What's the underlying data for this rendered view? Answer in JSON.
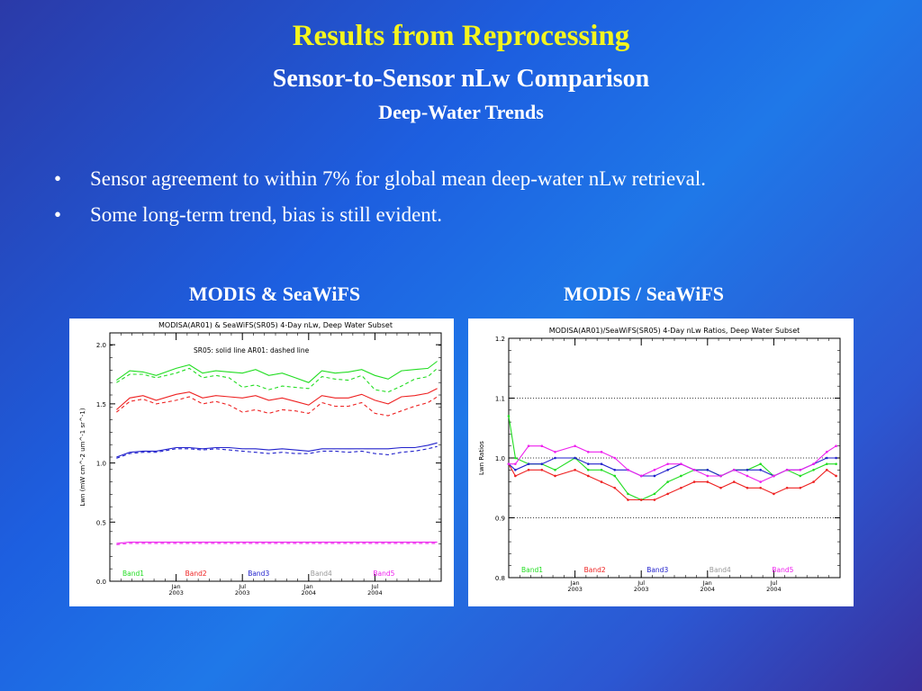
{
  "slide": {
    "title": "Results from Reprocessing",
    "subtitle": "Sensor-to-Sensor nLw Comparison",
    "subsubtitle": "Deep-Water Trends",
    "bullet_char": "•",
    "bullets": [
      "Sensor agreement to within 7% for global mean deep-water nLw retrieval.",
      "Some long-term trend, bias is still evident."
    ],
    "left_caption": "MODIS & SeaWiFS",
    "right_caption": "MODIS / SeaWiFS"
  },
  "colors": {
    "Band1": "#22dd22",
    "Band2": "#ee2222",
    "Band3": "#2222cc",
    "Band4": "#999999",
    "Band5": "#ee22ee"
  },
  "chart_data": [
    {
      "type": "line",
      "title": "MODISA(AR01) & SeaWiFS(SR05) 4-Day nLw, Deep Water Subset",
      "note": "SR05: solid line   AR01: dashed line",
      "ylabel": "Lwn (mW cm^-2 um^-1 sr^-1)",
      "ylim": [
        0.0,
        2.1
      ],
      "yticks": [
        "0.0",
        "0.5",
        "1.0",
        "1.5",
        "2.0"
      ],
      "ytick_values": [
        0.0,
        0.5,
        1.0,
        1.5,
        2.0
      ],
      "xlim": [
        2002.5,
        2005.0
      ],
      "xticks": [
        {
          "x": 2003.0,
          "top": "Jan",
          "bottom": "2003"
        },
        {
          "x": 2003.5,
          "top": "Jul",
          "bottom": "2003"
        },
        {
          "x": 2004.0,
          "top": "Jan",
          "bottom": "2004"
        },
        {
          "x": 2004.5,
          "top": "Jul",
          "bottom": "2004"
        }
      ],
      "x": [
        2002.55,
        2002.65,
        2002.75,
        2002.85,
        2003.0,
        2003.1,
        2003.2,
        2003.3,
        2003.4,
        2003.5,
        2003.6,
        2003.7,
        2003.8,
        2003.9,
        2004.0,
        2004.1,
        2004.2,
        2004.3,
        2004.4,
        2004.5,
        2004.6,
        2004.7,
        2004.8,
        2004.9,
        2004.97
      ],
      "series": [
        {
          "name": "Band1",
          "style": "solid",
          "values": [
            1.7,
            1.78,
            1.77,
            1.74,
            1.8,
            1.83,
            1.76,
            1.78,
            1.77,
            1.76,
            1.79,
            1.74,
            1.76,
            1.72,
            1.68,
            1.78,
            1.76,
            1.77,
            1.79,
            1.74,
            1.71,
            1.78,
            1.79,
            1.8,
            1.86
          ]
        },
        {
          "name": "Band1",
          "style": "dashed",
          "values": [
            1.68,
            1.75,
            1.75,
            1.72,
            1.76,
            1.8,
            1.72,
            1.74,
            1.72,
            1.64,
            1.66,
            1.62,
            1.65,
            1.64,
            1.63,
            1.73,
            1.71,
            1.7,
            1.74,
            1.62,
            1.6,
            1.65,
            1.71,
            1.73,
            1.8
          ]
        },
        {
          "name": "Band2",
          "style": "solid",
          "values": [
            1.45,
            1.55,
            1.57,
            1.53,
            1.58,
            1.6,
            1.55,
            1.57,
            1.56,
            1.55,
            1.57,
            1.53,
            1.55,
            1.52,
            1.49,
            1.57,
            1.55,
            1.55,
            1.58,
            1.53,
            1.5,
            1.56,
            1.57,
            1.59,
            1.63
          ]
        },
        {
          "name": "Band2",
          "style": "dashed",
          "values": [
            1.43,
            1.52,
            1.54,
            1.5,
            1.53,
            1.56,
            1.5,
            1.52,
            1.49,
            1.43,
            1.45,
            1.42,
            1.45,
            1.44,
            1.42,
            1.51,
            1.48,
            1.48,
            1.51,
            1.42,
            1.4,
            1.44,
            1.48,
            1.51,
            1.56
          ]
        },
        {
          "name": "Band3",
          "style": "solid",
          "values": [
            1.05,
            1.09,
            1.1,
            1.1,
            1.13,
            1.13,
            1.12,
            1.13,
            1.13,
            1.12,
            1.12,
            1.11,
            1.12,
            1.11,
            1.1,
            1.12,
            1.12,
            1.12,
            1.12,
            1.12,
            1.12,
            1.13,
            1.13,
            1.15,
            1.17
          ]
        },
        {
          "name": "Band3",
          "style": "dashed",
          "values": [
            1.04,
            1.08,
            1.09,
            1.09,
            1.12,
            1.12,
            1.11,
            1.12,
            1.11,
            1.1,
            1.09,
            1.08,
            1.09,
            1.08,
            1.08,
            1.1,
            1.1,
            1.09,
            1.1,
            1.08,
            1.07,
            1.09,
            1.1,
            1.12,
            1.14
          ]
        },
        {
          "name": "Band5",
          "style": "solid",
          "values": [
            0.32,
            0.33,
            0.33,
            0.33,
            0.33,
            0.33,
            0.33,
            0.33,
            0.33,
            0.33,
            0.33,
            0.33,
            0.33,
            0.33,
            0.33,
            0.33,
            0.33,
            0.33,
            0.33,
            0.33,
            0.33,
            0.33,
            0.33,
            0.33,
            0.33
          ]
        },
        {
          "name": "Band5",
          "style": "dashed",
          "values": [
            0.31,
            0.32,
            0.32,
            0.32,
            0.32,
            0.32,
            0.32,
            0.32,
            0.32,
            0.32,
            0.32,
            0.32,
            0.32,
            0.32,
            0.32,
            0.32,
            0.32,
            0.32,
            0.32,
            0.32,
            0.32,
            0.32,
            0.32,
            0.32,
            0.32
          ]
        }
      ],
      "legend": [
        "Band1",
        "Band2",
        "Band3",
        "Band4",
        "Band5"
      ]
    },
    {
      "type": "line",
      "title": "MODISA(AR01)/SeaWiFS(SR05) 4-Day nLw Ratios, Deep Water Subset",
      "ylabel": "Lwn Ratios",
      "ylim": [
        0.8,
        1.2
      ],
      "yticks": [
        "0.8",
        "0.9",
        "1.0",
        "1.1",
        "1.2"
      ],
      "ytick_values": [
        0.8,
        0.9,
        1.0,
        1.1,
        1.2
      ],
      "gridlines": [
        0.9,
        1.0,
        1.1
      ],
      "xlim": [
        2002.5,
        2005.0
      ],
      "xticks": [
        {
          "x": 2003.0,
          "top": "Jan",
          "bottom": "2003"
        },
        {
          "x": 2003.5,
          "top": "Jul",
          "bottom": "2003"
        },
        {
          "x": 2004.0,
          "top": "Jan",
          "bottom": "2004"
        },
        {
          "x": 2004.5,
          "top": "Jul",
          "bottom": "2004"
        }
      ],
      "x": [
        2002.5,
        2002.55,
        2002.65,
        2002.75,
        2002.85,
        2003.0,
        2003.1,
        2003.2,
        2003.3,
        2003.4,
        2003.5,
        2003.6,
        2003.7,
        2003.8,
        2003.9,
        2004.0,
        2004.1,
        2004.2,
        2004.3,
        2004.4,
        2004.5,
        2004.6,
        2004.7,
        2004.8,
        2004.9,
        2004.97
      ],
      "series": [
        {
          "name": "Band1",
          "values": [
            1.07,
            1.0,
            0.99,
            0.99,
            0.98,
            1.0,
            0.98,
            0.98,
            0.97,
            0.94,
            0.93,
            0.94,
            0.96,
            0.97,
            0.98,
            0.98,
            0.97,
            0.98,
            0.98,
            0.99,
            0.97,
            0.98,
            0.97,
            0.98,
            0.99,
            0.99
          ]
        },
        {
          "name": "Band2",
          "values": [
            0.99,
            0.97,
            0.98,
            0.98,
            0.97,
            0.98,
            0.97,
            0.96,
            0.95,
            0.93,
            0.93,
            0.93,
            0.94,
            0.95,
            0.96,
            0.96,
            0.95,
            0.96,
            0.95,
            0.95,
            0.94,
            0.95,
            0.95,
            0.96,
            0.98,
            0.97
          ]
        },
        {
          "name": "Band3",
          "values": [
            0.99,
            0.98,
            0.99,
            0.99,
            1.0,
            1.0,
            0.99,
            0.99,
            0.98,
            0.98,
            0.97,
            0.97,
            0.98,
            0.99,
            0.98,
            0.98,
            0.97,
            0.98,
            0.98,
            0.98,
            0.97,
            0.98,
            0.98,
            0.99,
            1.0,
            1.0
          ]
        },
        {
          "name": "Band5",
          "values": [
            0.99,
            0.99,
            1.02,
            1.02,
            1.01,
            1.02,
            1.01,
            1.01,
            1.0,
            0.98,
            0.97,
            0.98,
            0.99,
            0.99,
            0.98,
            0.97,
            0.97,
            0.98,
            0.97,
            0.96,
            0.97,
            0.98,
            0.98,
            0.99,
            1.01,
            1.02
          ]
        }
      ],
      "legend": [
        "Band1",
        "Band2",
        "Band3",
        "Band4",
        "Band5"
      ]
    }
  ]
}
